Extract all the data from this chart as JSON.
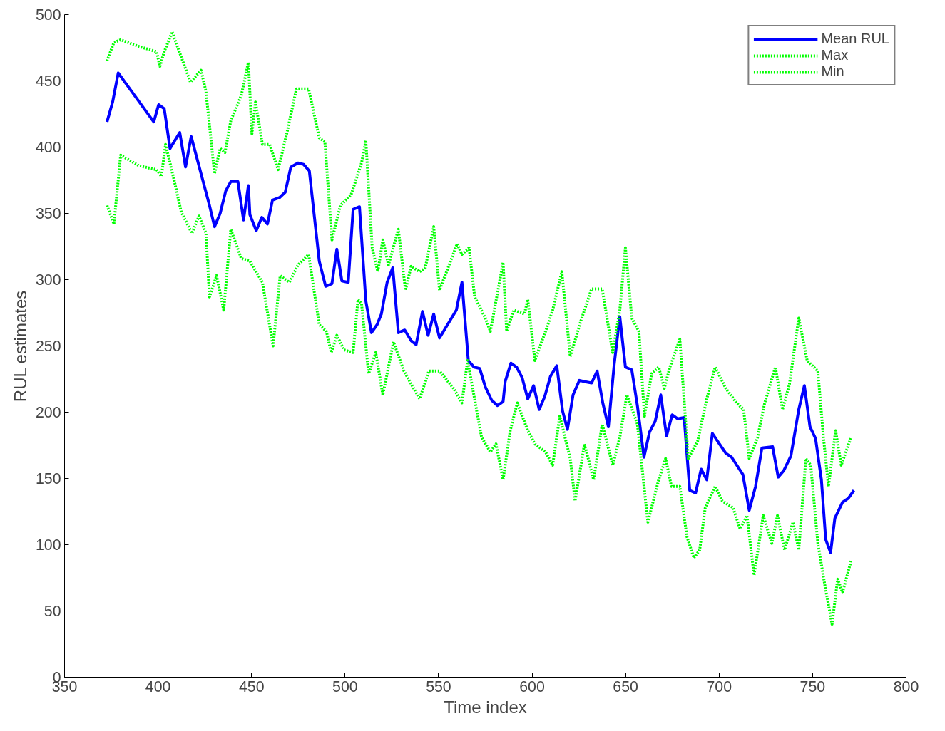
{
  "chart_data": {
    "type": "line",
    "xlabel": "Time index",
    "ylabel": "RUL estimates",
    "xlim": [
      350,
      800
    ],
    "ylim": [
      0,
      500
    ],
    "xticks": [
      350,
      400,
      450,
      500,
      550,
      600,
      650,
      700,
      750,
      800
    ],
    "yticks": [
      0,
      50,
      100,
      150,
      200,
      250,
      300,
      350,
      400,
      450,
      500
    ],
    "grid": false,
    "legend": "top right",
    "series": [
      {
        "name": "Mean RUL",
        "color": "#0000ff",
        "line_style": "solid",
        "x": [
          372.7,
          375.7,
          378.7,
          397.7,
          400.3,
          403.3,
          406.4,
          411.6,
          414.7,
          417.7,
          427.5,
          430.2,
          433.2,
          436.2,
          438.9,
          442.7,
          445.7,
          448.3,
          449.1,
          452.5,
          455.5,
          458.5,
          461.2,
          465,
          468,
          471,
          474.8,
          477.8,
          480.9,
          486.2,
          489.6,
          493,
          495.6,
          498.3,
          501.7,
          504.3,
          507.7,
          511.1,
          514.1,
          517.1,
          519.4,
          522.5,
          525.5,
          528.5,
          531.9,
          535.3,
          538,
          541.4,
          544.4,
          547.4,
          550.5,
          559.5,
          562.5,
          565.9,
          568.9,
          572,
          575,
          578.4,
          581.5,
          584.5,
          585.6,
          588.7,
          591.7,
          594.7,
          597.7,
          600.8,
          603.8,
          606.8,
          609.8,
          613.2,
          616.3,
          618.9,
          621.9,
          625.3,
          628.3,
          631.8,
          634.8,
          637.8,
          640.8,
          643.9,
          646.9,
          649.9,
          653.3,
          656.3,
          659.8,
          662.8,
          665.8,
          668.8,
          671.9,
          674.9,
          677.9,
          681.3,
          684.3,
          687.4,
          690.4,
          693.4,
          696.4,
          700.2,
          703.6,
          706.7,
          712.7,
          716.1,
          719.5,
          722.9,
          728.6,
          731.6,
          734.6,
          738.4,
          742.6,
          745.6,
          748.6,
          751.6,
          754.7,
          757,
          759.6,
          761.9,
          766,
          769.1,
          772.1
        ],
        "values": [
          419,
          434,
          456,
          419,
          432,
          429,
          399,
          411,
          385,
          408,
          356,
          340,
          350,
          367,
          374,
          374,
          345,
          371,
          349,
          337,
          347,
          342,
          360,
          362,
          366,
          385,
          388,
          387,
          382,
          314,
          295,
          297,
          323,
          299,
          298,
          353,
          355,
          284,
          260,
          266,
          274,
          298,
          309,
          260,
          262,
          254,
          251,
          276,
          258,
          274,
          256,
          277,
          298,
          239,
          234,
          233,
          219,
          209,
          205,
          208,
          223,
          237,
          234,
          226,
          210,
          220,
          202,
          212,
          227,
          235,
          201,
          187,
          213,
          224,
          223,
          222,
          231,
          207,
          189,
          236,
          272,
          234,
          232,
          205,
          166,
          185,
          193,
          213,
          182,
          198,
          195,
          196,
          141,
          139,
          157,
          149,
          184,
          176,
          169,
          166,
          153,
          126,
          144,
          173,
          174,
          151,
          156,
          167,
          202,
          220,
          189,
          180,
          149,
          104,
          94,
          120,
          132,
          135,
          141
        ]
      },
      {
        "name": "Max",
        "color": "#00ff00",
        "line_style": "dotted",
        "x": [
          372.7,
          376.4,
          380,
          389.7,
          399.2,
          401,
          403.3,
          407.5,
          412.4,
          417.3,
          423,
          425.6,
          430.2,
          433.2,
          435.8,
          438.9,
          444.5,
          448.3,
          450.2,
          452.1,
          455.8,
          459.7,
          464.2,
          469.1,
          474,
          480.5,
          486.2,
          489.2,
          493,
          497.5,
          503.2,
          508.8,
          511.1,
          514.5,
          517.5,
          520.2,
          523.2,
          528.5,
          532.3,
          535.3,
          539.9,
          542.9,
          547.4,
          550.5,
          559.9,
          562.5,
          566.3,
          569.3,
          575,
          577.7,
          584.5,
          586.4,
          590.2,
          595.9,
          597.7,
          601.5,
          607.2,
          611,
          615.9,
          620.4,
          626.1,
          631.8,
          637.5,
          643.1,
          646.9,
          649.9,
          653.3,
          657.1,
          660.1,
          663.9,
          667.7,
          670.7,
          673.7,
          679,
          683.5,
          688.5,
          693.4,
          697.9,
          703.6,
          709.3,
          713.1,
          716.1,
          720.6,
          724.4,
          730.1,
          733.9,
          737.6,
          742.6,
          747.1,
          752.8,
          755.8,
          758.5,
          762.3,
          765.3,
          770.6
        ],
        "values": [
          465,
          479,
          481,
          476,
          472,
          461,
          472,
          487,
          468,
          449,
          458,
          442,
          380,
          399,
          396,
          420,
          439,
          464,
          410,
          434,
          402,
          402,
          383,
          412,
          444,
          444,
          407,
          404,
          330,
          356,
          364,
          388,
          405,
          324,
          306,
          330,
          311,
          338,
          292,
          310,
          306,
          309,
          340,
          292,
          327,
          319,
          324,
          287,
          271,
          261,
          313,
          261,
          277,
          274,
          285,
          239,
          261,
          277,
          306,
          242,
          269,
          293,
          293,
          245,
          277,
          324,
          271,
          261,
          197,
          229,
          234,
          218,
          234,
          255,
          165,
          178,
          210,
          234,
          218,
          207,
          202,
          165,
          181,
          207,
          234,
          202,
          221,
          271,
          239,
          231,
          181,
          144,
          186,
          160,
          181
        ]
      },
      {
        "name": "Min",
        "color": "#00ff00",
        "line_style": "dotted",
        "x": [
          372.7,
          376.4,
          380,
          389.7,
          399.2,
          401.8,
          404,
          408.6,
          412.4,
          418.1,
          421.9,
          425.6,
          427.5,
          431.3,
          435.1,
          438.9,
          444.5,
          449.1,
          455.8,
          461.5,
          465.3,
          470.2,
          474.8,
          480.5,
          486.2,
          490,
          492.6,
          495.6,
          499.4,
          504.3,
          506.9,
          508.8,
          512.6,
          516.4,
          520.2,
          525.9,
          531.5,
          539.9,
          544.8,
          550.5,
          558,
          562.5,
          565.5,
          573,
          577.7,
          580.7,
          584.5,
          588.3,
          592.1,
          597.7,
          601.5,
          607.2,
          611,
          614.8,
          620.4,
          623,
          628,
          632.9,
          637.5,
          643.1,
          646.9,
          650.7,
          656.3,
          661.9,
          667.7,
          671.4,
          674.5,
          679,
          682.8,
          686.5,
          689.6,
          692.6,
          697.9,
          701.7,
          707.4,
          711.2,
          714.9,
          718.7,
          723.6,
          728.2,
          731.2,
          735,
          739.5,
          742.6,
          746.4,
          749,
          752.8,
          756.6,
          760.4,
          763.4,
          766,
          770.6
        ],
        "values": [
          356,
          342,
          394,
          386,
          383,
          378,
          402,
          375,
          351,
          335,
          348,
          335,
          287,
          303,
          277,
          338,
          316,
          314,
          298,
          250,
          303,
          298,
          311,
          319,
          266,
          261,
          245,
          258,
          247,
          245,
          285,
          282,
          229,
          245,
          213,
          253,
          231,
          210,
          231,
          231,
          218,
          207,
          239,
          181,
          170,
          176,
          149,
          186,
          207,
          186,
          176,
          170,
          160,
          197,
          165,
          133,
          176,
          149,
          191,
          160,
          181,
          213,
          191,
          117,
          149,
          165,
          144,
          144,
          106,
          90,
          96,
          128,
          144,
          133,
          128,
          112,
          122,
          77,
          122,
          101,
          122,
          96,
          117,
          96,
          165,
          160,
          101,
          69,
          40,
          74,
          64,
          88
        ]
      }
    ]
  }
}
